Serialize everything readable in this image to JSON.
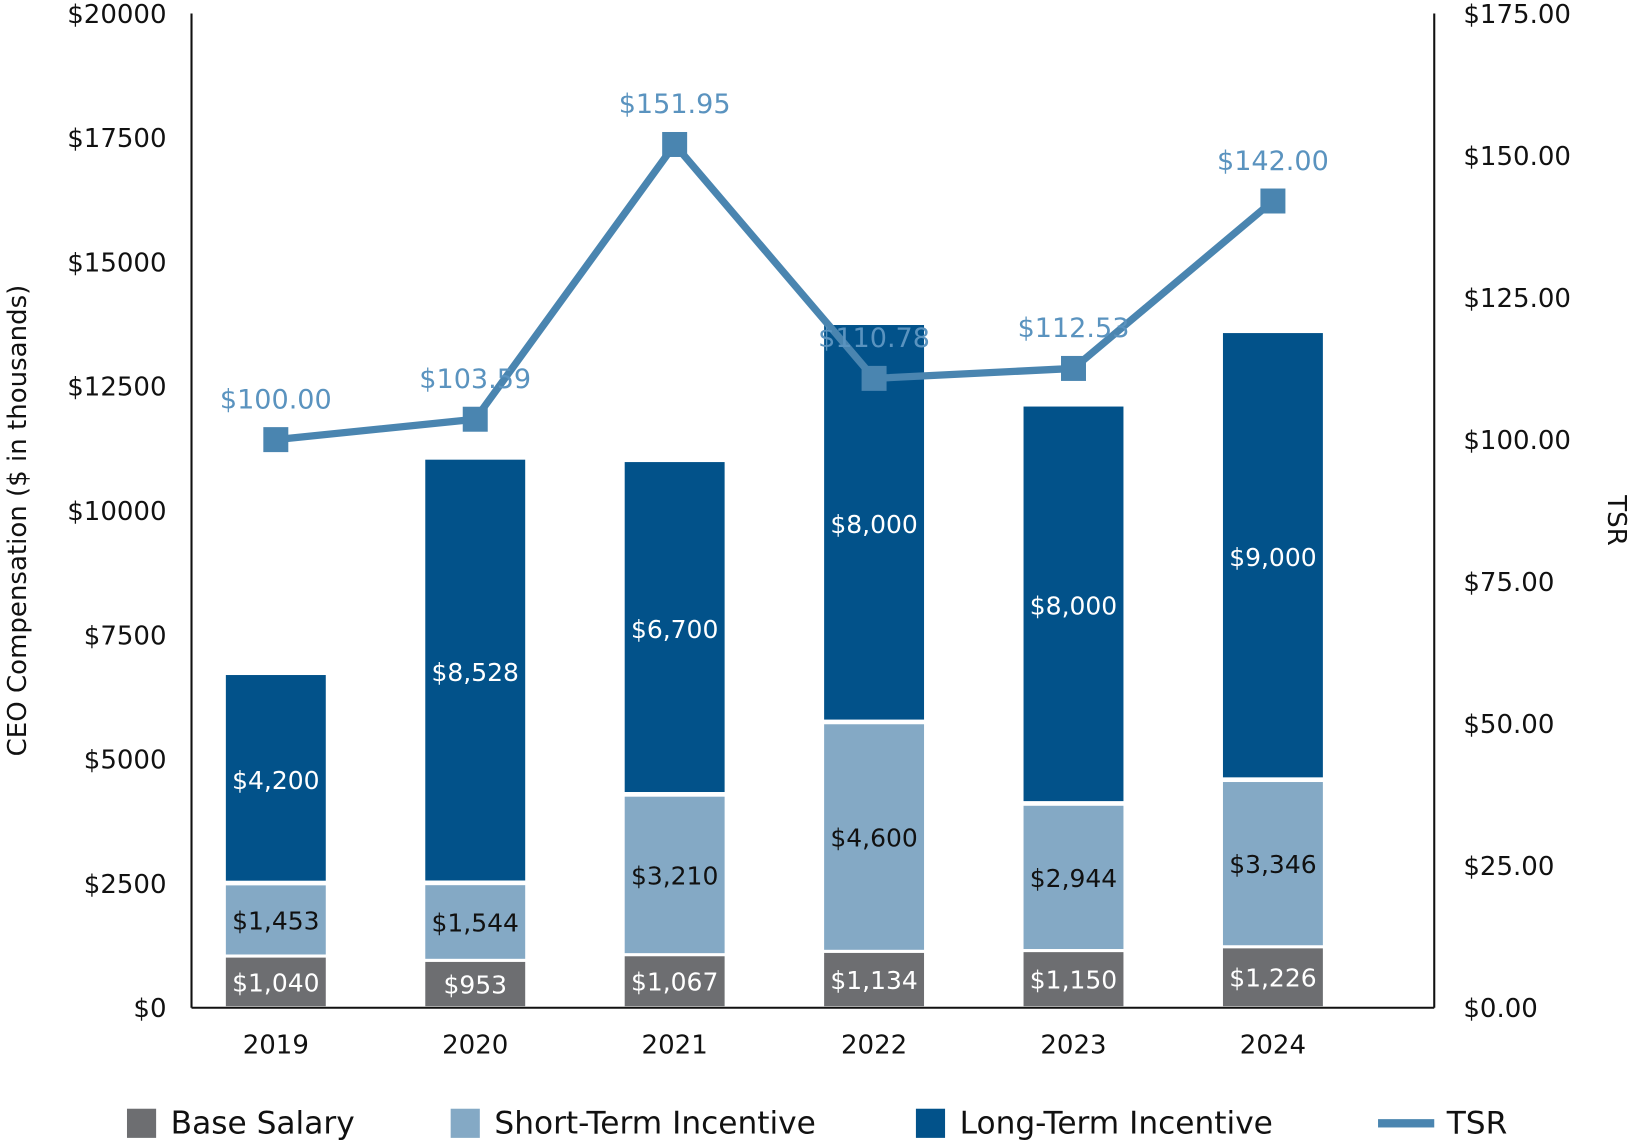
{
  "chart_data": {
    "type": "bar",
    "stacked": true,
    "categories": [
      "2019",
      "2020",
      "2021",
      "2022",
      "2023",
      "2024"
    ],
    "series": [
      {
        "name": "Base Salary",
        "color": "#6d6e71",
        "values": [
          1040,
          953,
          1067,
          1134,
          1150,
          1226
        ],
        "labels": [
          "$1,040",
          "$953",
          "$1,067",
          "$1,134",
          "$1,150",
          "$1,226"
        ]
      },
      {
        "name": "Short-Term Incentive",
        "color": "#84a9c5",
        "values": [
          1453,
          1544,
          3210,
          4600,
          2944,
          3346
        ],
        "labels": [
          "$1,453",
          "$1,544",
          "$3,210",
          "$4,600",
          "$2,944",
          "$3,346"
        ]
      },
      {
        "name": "Long-Term Incentive",
        "color": "#02528a",
        "values": [
          4200,
          8528,
          6700,
          8000,
          8000,
          9000
        ],
        "labels": [
          "$4,200",
          "$8,528",
          "$6,700",
          "$8,000",
          "$8,000",
          "$9,000"
        ]
      }
    ],
    "line": {
      "name": "TSR",
      "type": "line",
      "axis": "right",
      "color": "#4a85b0",
      "values": [
        100.0,
        103.59,
        151.95,
        110.78,
        112.53,
        142.0
      ],
      "labels": [
        "$100.00",
        "$103.59",
        "$151.95",
        "$110.78",
        "$112.53",
        "$142.00"
      ]
    },
    "ylabel": "CEO Compensation ($ in thousands)",
    "ylabel_right": "TSR",
    "ylim": [
      0,
      20000
    ],
    "ylim_right": [
      0,
      175
    ],
    "yticks": [
      "$0",
      "$2500",
      "$5000",
      "$7500",
      "$10000",
      "$12500",
      "$15000",
      "$17500",
      "$20000"
    ],
    "yticks_right": [
      "$0.00",
      "$25.00",
      "$50.00",
      "$75.00",
      "$100.00",
      "$125.00",
      "$150.00",
      "$175.00"
    ],
    "legend_position": "bottom",
    "legend": [
      "Base Salary",
      "Short-Term Incentive",
      "Long-Term Incentive",
      "TSR"
    ],
    "grid": false
  }
}
